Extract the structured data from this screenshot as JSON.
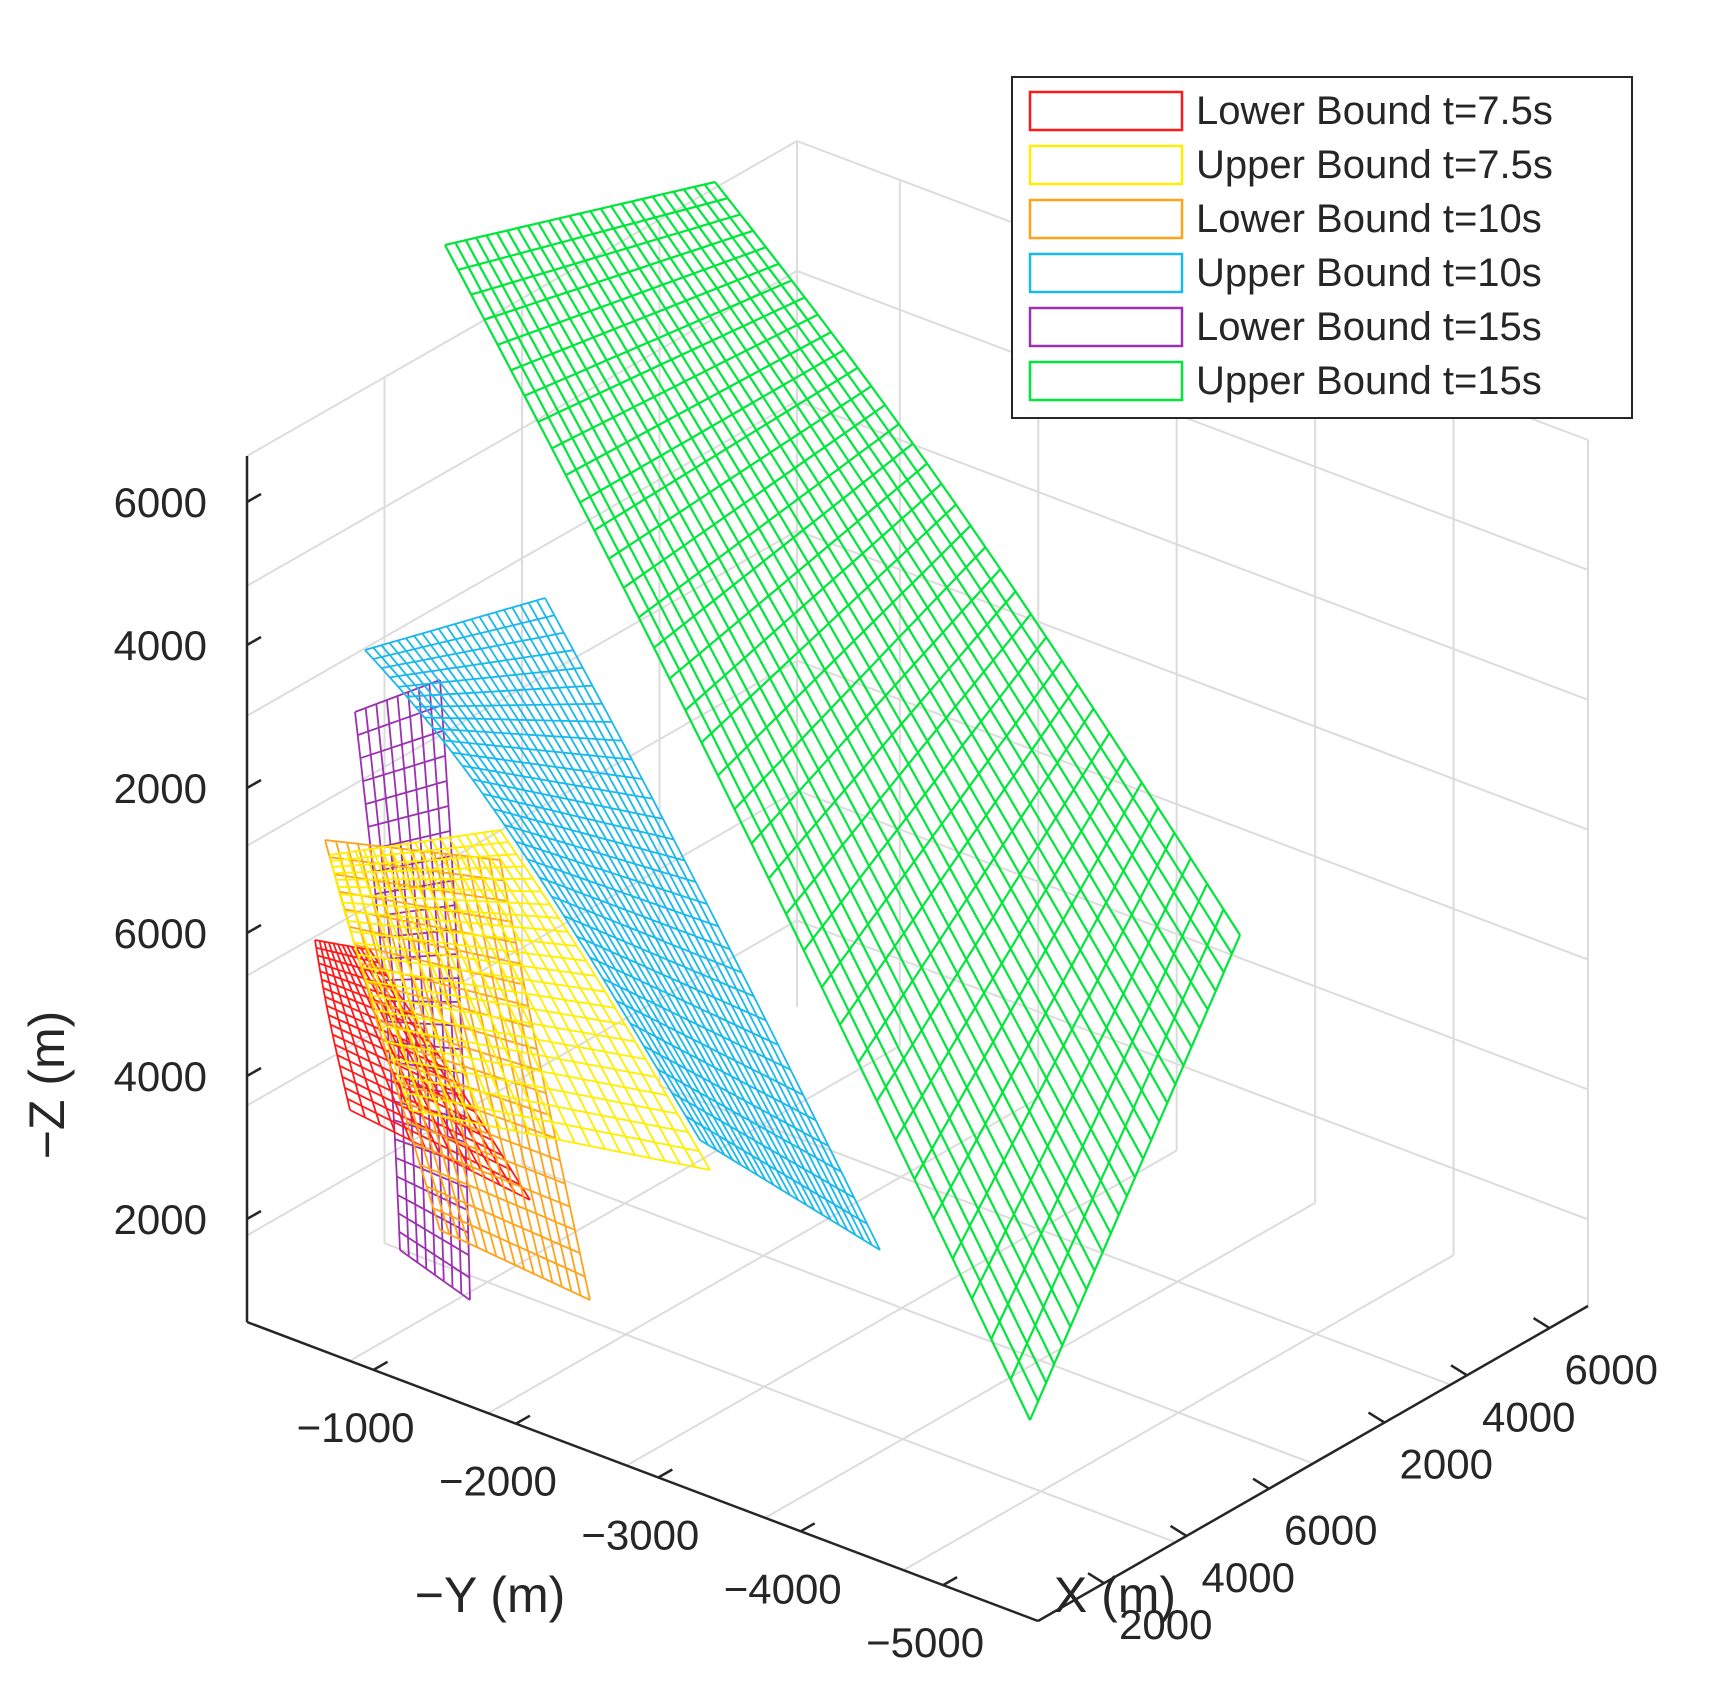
{
  "chart_data": {
    "type": "surface3d",
    "subtype": "wireframe mesh surfaces",
    "title": "",
    "axes": {
      "z": {
        "label": "−Z (m)",
        "ticks_upper": [
          "6000",
          "4000",
          "2000"
        ],
        "ticks_lower": [
          "6000",
          "4000",
          "2000"
        ]
      },
      "y": {
        "label": "−Y (m)",
        "ticks": [
          "−1000",
          "−2000",
          "−3000",
          "−4000",
          "−5000"
        ]
      },
      "x": {
        "label": "X (m)",
        "ticks_upper": [
          "6000",
          "4000",
          "2000"
        ],
        "ticks_lower": [
          "6000",
          "4000",
          "2000"
        ]
      }
    },
    "grid": true,
    "legend_position": "top-right",
    "series": [
      {
        "name": "Lower Bound t=7.5s",
        "color": "#ff1a1a"
      },
      {
        "name": "Upper Bound t=7.5s",
        "color": "#ffee00"
      },
      {
        "name": "Lower Bound t=10s",
        "color": "#ffa31a"
      },
      {
        "name": "Upper Bound t=10s",
        "color": "#1ab8eb"
      },
      {
        "name": "Lower Bound t=15s",
        "color": "#9b30b0"
      },
      {
        "name": "Upper Bound t=15s",
        "color": "#00e63a"
      }
    ]
  }
}
